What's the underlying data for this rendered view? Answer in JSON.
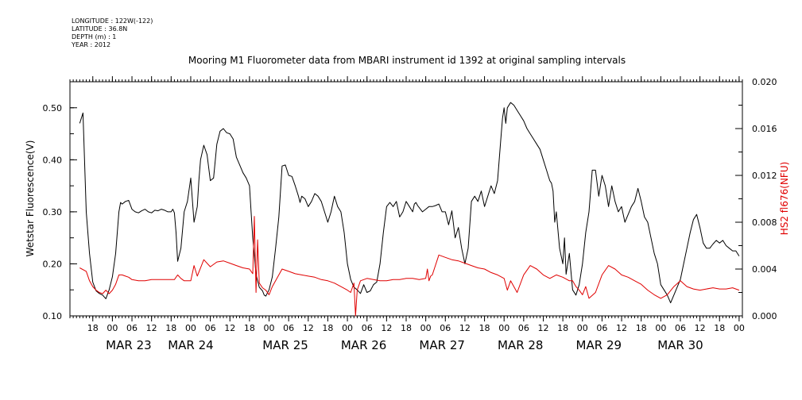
{
  "meta": {
    "longitude": "LONGITUDE : 122W(-122)",
    "latitude": "LATITUDE : 36.8N",
    "depth": "DEPTH (m) : 1",
    "year": "YEAR : 2012"
  },
  "colors": {
    "fluorescence": "#000000",
    "hs2": "#e00000"
  },
  "chart_data": {
    "type": "line",
    "title": "Mooring M1 Fluorometer data from MBARI instrument id 1392 at original sampling intervals",
    "x_unit": "hours since MAR 22 2012 00:00",
    "xlim": [
      11,
      217
    ],
    "x_ticks": [
      {
        "label": "18",
        "x": 18
      },
      {
        "label": "00",
        "x": 24
      },
      {
        "label": "06",
        "x": 30
      },
      {
        "label": "12",
        "x": 36
      },
      {
        "label": "18",
        "x": 42
      },
      {
        "label": "00",
        "x": 48
      },
      {
        "label": "06",
        "x": 54
      },
      {
        "label": "12",
        "x": 60
      },
      {
        "label": "18",
        "x": 66
      },
      {
        "label": "00",
        "x": 72
      },
      {
        "label": "06",
        "x": 78
      },
      {
        "label": "12",
        "x": 84
      },
      {
        "label": "18",
        "x": 90
      },
      {
        "label": "00",
        "x": 96
      },
      {
        "label": "06",
        "x": 102
      },
      {
        "label": "12",
        "x": 108
      },
      {
        "label": "18",
        "x": 114
      },
      {
        "label": "00",
        "x": 120
      },
      {
        "label": "06",
        "x": 126
      },
      {
        "label": "12",
        "x": 132
      },
      {
        "label": "18",
        "x": 138
      },
      {
        "label": "00",
        "x": 144
      },
      {
        "label": "06",
        "x": 150
      },
      {
        "label": "12",
        "x": 156
      },
      {
        "label": "18",
        "x": 162
      },
      {
        "label": "00",
        "x": 168
      },
      {
        "label": "06",
        "x": 174
      },
      {
        "label": "12",
        "x": 180
      },
      {
        "label": "18",
        "x": 186
      },
      {
        "label": "00",
        "x": 192
      },
      {
        "label": "06",
        "x": 198
      },
      {
        "label": "12",
        "x": 204
      },
      {
        "label": "18",
        "x": 210
      },
      {
        "label": "00",
        "x": 216
      }
    ],
    "day_labels": [
      {
        "label": "MAR 23",
        "x": 29
      },
      {
        "label": "MAR 24",
        "x": 48
      },
      {
        "label": "MAR 25",
        "x": 77
      },
      {
        "label": "MAR 26",
        "x": 101
      },
      {
        "label": "MAR 27",
        "x": 125
      },
      {
        "label": "MAR 28",
        "x": 149
      },
      {
        "label": "MAR 29",
        "x": 173
      },
      {
        "label": "MAR 30",
        "x": 198
      }
    ],
    "left_axis": {
      "label": "Wetstar Fluorescence(V)",
      "ylim": [
        0.1,
        0.55
      ],
      "ticks": [
        {
          "label": "0.10",
          "v": 0.1
        },
        {
          "label": "0.20",
          "v": 0.2
        },
        {
          "label": "0.30",
          "v": 0.3
        },
        {
          "label": "0.40",
          "v": 0.4
        },
        {
          "label": "0.50",
          "v": 0.5
        }
      ]
    },
    "right_axis": {
      "label": "HS2 fl676(NFU)",
      "ylim": [
        0.0,
        0.02
      ],
      "ticks": [
        {
          "label": "0.000",
          "v": 0.0
        },
        {
          "label": "0.004",
          "v": 0.004
        },
        {
          "label": "0.008",
          "v": 0.008
        },
        {
          "label": "0.012",
          "v": 0.012
        },
        {
          "label": "0.016",
          "v": 0.016
        },
        {
          "label": "0.020",
          "v": 0.02
        }
      ]
    },
    "series": [
      {
        "axis": "left",
        "color": "#000000",
        "x": [
          14,
          15,
          16,
          17,
          18,
          19,
          20,
          21,
          22,
          23,
          24,
          25,
          26,
          26.5,
          27,
          28,
          29,
          30,
          31,
          32,
          33,
          34,
          35,
          36,
          37,
          38,
          39,
          40,
          41,
          42,
          42.5,
          43,
          43.5,
          44,
          45,
          46,
          47,
          48,
          49,
          50,
          50.5,
          51,
          52,
          53,
          54,
          55,
          56,
          57,
          58,
          59,
          60,
          61,
          62,
          63,
          64,
          65,
          66,
          66.5,
          67,
          68,
          69,
          70,
          70.5,
          71,
          72,
          73,
          74,
          75,
          76,
          77,
          78,
          79,
          80,
          81,
          81.5,
          82,
          83,
          84,
          85,
          86,
          87,
          88,
          89,
          90,
          91,
          92,
          93,
          94,
          95,
          96,
          97,
          98,
          99,
          100,
          101,
          102,
          103,
          104,
          105,
          106,
          107,
          108,
          109,
          110,
          111,
          112,
          113,
          114,
          115,
          116,
          116.5,
          117,
          117.5,
          118,
          119,
          120,
          121,
          122,
          123,
          124,
          125,
          126,
          127,
          128,
          129,
          130,
          131,
          132,
          133,
          134,
          135,
          136,
          137,
          138,
          139,
          140,
          141,
          142,
          143,
          143.5,
          144,
          144.5,
          145,
          146,
          147,
          148,
          149,
          150,
          151,
          152,
          153,
          154,
          155,
          156,
          157,
          157.5,
          158,
          158.5,
          159,
          159.5,
          160,
          161,
          162,
          162.5,
          163,
          164,
          165,
          166,
          167,
          168,
          169,
          170,
          171,
          172,
          173,
          174,
          175,
          176,
          177,
          178,
          179,
          180,
          181,
          182,
          183,
          184,
          185,
          186,
          187,
          188,
          189,
          190,
          191,
          192,
          193,
          194,
          195,
          196,
          197,
          198,
          199,
          200,
          201,
          202,
          203,
          204,
          205,
          206,
          207,
          208,
          209,
          210,
          211,
          212,
          213,
          214,
          215,
          216
        ],
        "values": [
          0.47,
          0.49,
          0.3,
          0.22,
          0.165,
          0.148,
          0.143,
          0.14,
          0.133,
          0.15,
          0.175,
          0.22,
          0.3,
          0.318,
          0.315,
          0.32,
          0.322,
          0.305,
          0.3,
          0.298,
          0.302,
          0.305,
          0.3,
          0.298,
          0.303,
          0.302,
          0.305,
          0.303,
          0.3,
          0.3,
          0.305,
          0.298,
          0.26,
          0.205,
          0.23,
          0.3,
          0.32,
          0.365,
          0.28,
          0.31,
          0.36,
          0.4,
          0.428,
          0.41,
          0.36,
          0.365,
          0.43,
          0.455,
          0.46,
          0.452,
          0.45,
          0.44,
          0.405,
          0.39,
          0.375,
          0.365,
          0.35,
          0.3,
          0.25,
          0.18,
          0.155,
          0.148,
          0.14,
          0.138,
          0.15,
          0.175,
          0.23,
          0.29,
          0.388,
          0.39,
          0.37,
          0.368,
          0.35,
          0.33,
          0.318,
          0.33,
          0.325,
          0.31,
          0.32,
          0.335,
          0.33,
          0.32,
          0.3,
          0.28,
          0.3,
          0.33,
          0.31,
          0.3,
          0.26,
          0.2,
          0.17,
          0.155,
          0.15,
          0.143,
          0.16,
          0.145,
          0.148,
          0.16,
          0.165,
          0.2,
          0.26,
          0.31,
          0.318,
          0.31,
          0.32,
          0.29,
          0.3,
          0.32,
          0.31,
          0.3,
          0.315,
          0.318,
          0.312,
          0.308,
          0.3,
          0.305,
          0.31,
          0.31,
          0.312,
          0.315,
          0.3,
          0.3,
          0.275,
          0.302,
          0.25,
          0.27,
          0.23,
          0.2,
          0.23,
          0.32,
          0.33,
          0.32,
          0.34,
          0.31,
          0.33,
          0.35,
          0.335,
          0.36,
          0.44,
          0.48,
          0.5,
          0.47,
          0.5,
          0.51,
          0.505,
          0.495,
          0.485,
          0.475,
          0.46,
          0.45,
          0.44,
          0.43,
          0.42,
          0.4,
          0.38,
          0.37,
          0.36,
          0.355,
          0.34,
          0.28,
          0.3,
          0.23,
          0.2,
          0.25,
          0.18,
          0.22,
          0.15,
          0.14,
          0.16,
          0.2,
          0.26,
          0.3,
          0.38,
          0.38,
          0.33,
          0.37,
          0.35,
          0.31,
          0.35,
          0.32,
          0.3,
          0.31,
          0.28,
          0.295,
          0.31,
          0.32,
          0.345,
          0.32,
          0.29,
          0.28,
          0.25,
          0.22,
          0.2,
          0.16,
          0.15,
          0.14,
          0.125,
          0.14,
          0.155,
          0.17,
          0.2,
          0.23,
          0.26,
          0.285,
          0.295,
          0.27,
          0.24,
          0.23,
          0.23,
          0.238,
          0.245,
          0.24,
          0.245,
          0.235,
          0.23,
          0.225,
          0.225,
          0.215
        ]
      },
      {
        "axis": "right",
        "color": "#e00000",
        "x": [
          14,
          16,
          17,
          18,
          19,
          20,
          21,
          22,
          23,
          24,
          25,
          26,
          27,
          28,
          29,
          30,
          32,
          34,
          36,
          38,
          40,
          42,
          43,
          44,
          45,
          46,
          48,
          49,
          50,
          52,
          54,
          56,
          58,
          60,
          62,
          64,
          66,
          67,
          67.5,
          68,
          68.5,
          69,
          70,
          71,
          72,
          73,
          74,
          76,
          78,
          80,
          82,
          84,
          86,
          88,
          90,
          92,
          94,
          96,
          97,
          98,
          98.5,
          99,
          100,
          102,
          104,
          106,
          108,
          110,
          112,
          114,
          116,
          118,
          120,
          120.5,
          121,
          121.5,
          122,
          124,
          126,
          128,
          130,
          132,
          134,
          136,
          138,
          140,
          142,
          144,
          145,
          146,
          148,
          150,
          152,
          154,
          156,
          158,
          160,
          162,
          164,
          165,
          166,
          167,
          168,
          169,
          170,
          172,
          174,
          176,
          178,
          180,
          182,
          184,
          186,
          188,
          190,
          192,
          194,
          196,
          198,
          200,
          202,
          204,
          206,
          208,
          210,
          212,
          214,
          216
        ],
        "values": [
          0.0041,
          0.0038,
          0.003,
          0.0025,
          0.0022,
          0.002,
          0.0019,
          0.0022,
          0.0019,
          0.0022,
          0.0027,
          0.0035,
          0.0035,
          0.0034,
          0.0033,
          0.0031,
          0.003,
          0.003,
          0.0031,
          0.0031,
          0.0031,
          0.0031,
          0.0031,
          0.0035,
          0.0032,
          0.003,
          0.003,
          0.0043,
          0.0034,
          0.0048,
          0.0042,
          0.0046,
          0.0047,
          0.0045,
          0.0043,
          0.0041,
          0.004,
          0.0036,
          0.0085,
          0.002,
          0.0065,
          0.0028,
          0.0024,
          0.0022,
          0.0018,
          0.0025,
          0.003,
          0.004,
          0.0038,
          0.0036,
          0.0035,
          0.0034,
          0.0033,
          0.0031,
          0.003,
          0.0028,
          0.0025,
          0.0022,
          0.002,
          0.0028,
          0.0,
          0.0022,
          0.003,
          0.0032,
          0.0031,
          0.003,
          0.003,
          0.0031,
          0.0031,
          0.0032,
          0.0032,
          0.0031,
          0.0032,
          0.004,
          0.003,
          0.0034,
          0.0035,
          0.0052,
          0.005,
          0.0048,
          0.0047,
          0.0045,
          0.0043,
          0.0041,
          0.004,
          0.0037,
          0.0035,
          0.0032,
          0.0022,
          0.003,
          0.002,
          0.0035,
          0.0043,
          0.004,
          0.0035,
          0.0032,
          0.0035,
          0.0033,
          0.003,
          0.003,
          0.0025,
          0.0022,
          0.0018,
          0.0025,
          0.0015,
          0.002,
          0.0035,
          0.0043,
          0.004,
          0.0035,
          0.0033,
          0.003,
          0.0027,
          0.0022,
          0.0018,
          0.0015,
          0.0018,
          0.0025,
          0.003,
          0.0025,
          0.0023,
          0.0022,
          0.0023,
          0.0024,
          0.0023,
          0.0023,
          0.0024,
          0.0022
        ]
      }
    ]
  }
}
